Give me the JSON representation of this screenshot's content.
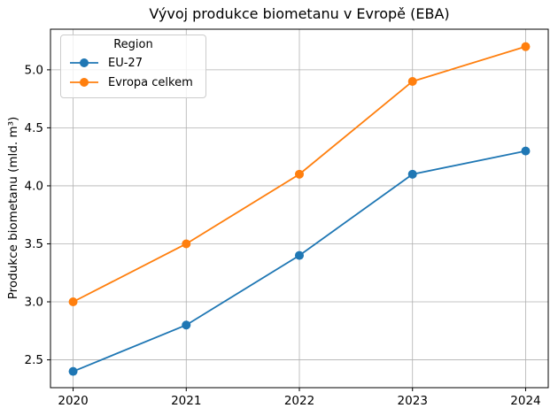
{
  "chart_data": {
    "type": "line",
    "title": "Vývoj produkce biometanu v Evropě (EBA)",
    "xlabel": "",
    "ylabel": "Produkce biometanu (mld. m³)",
    "x": [
      2020,
      2021,
      2022,
      2023,
      2024
    ],
    "xticks": [
      2020,
      2021,
      2022,
      2023,
      2024
    ],
    "yticks": [
      2.5,
      3.0,
      3.5,
      4.0,
      4.5,
      5.0
    ],
    "xlim": [
      2019.8,
      2024.2
    ],
    "ylim": [
      2.26,
      5.35
    ],
    "grid": true,
    "grid_color": "#b0b0b0",
    "spine_color": "#000000",
    "tick_label_color": "#000000",
    "legend": {
      "title": "Region",
      "position": "upper left"
    },
    "series": [
      {
        "name": "EU-27",
        "color": "#1f77b4",
        "values": [
          2.4,
          2.8,
          3.4,
          4.1,
          4.3
        ]
      },
      {
        "name": "Evropa celkem",
        "color": "#ff7f0e",
        "values": [
          3.0,
          3.5,
          4.1,
          4.9,
          5.2
        ]
      }
    ]
  }
}
